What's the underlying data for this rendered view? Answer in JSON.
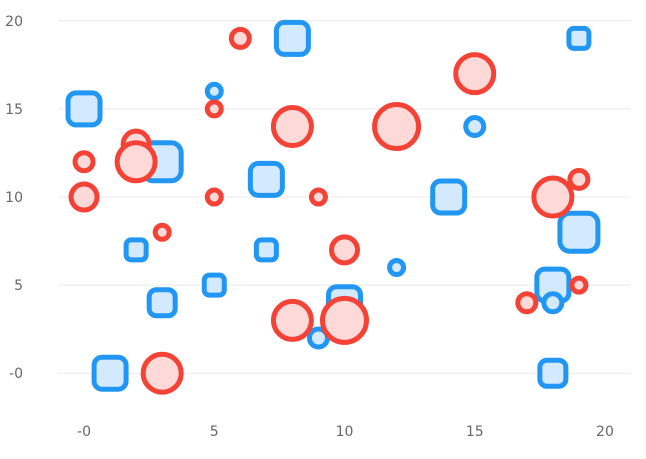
{
  "chart_data": {
    "type": "scatter",
    "title": "",
    "xlabel": "",
    "ylabel": "",
    "xlim": [
      -1,
      21
    ],
    "ylim": [
      -2.2,
      20.5
    ],
    "grid": {
      "horizontal": true,
      "vertical": false
    },
    "x_ticks": [
      {
        "value": 0,
        "label": "-0"
      },
      {
        "value": 5,
        "label": "5"
      },
      {
        "value": 10,
        "label": "10"
      },
      {
        "value": 15,
        "label": "15"
      },
      {
        "value": 20,
        "label": "20"
      }
    ],
    "y_ticks": [
      {
        "value": 0,
        "label": "-0"
      },
      {
        "value": 5,
        "label": "5"
      },
      {
        "value": 10,
        "label": "10"
      },
      {
        "value": 15,
        "label": "15"
      },
      {
        "value": 20,
        "label": "20"
      }
    ],
    "series": [
      {
        "name": "squares",
        "marker": "rounded-square",
        "stroke": "#2196f3",
        "fill": "#d3e9fd",
        "points": [
          {
            "x": 0,
            "y": 15,
            "size": 3
          },
          {
            "x": 1,
            "y": 0,
            "size": 3
          },
          {
            "x": 2,
            "y": 7,
            "size": 1
          },
          {
            "x": 3,
            "y": 12,
            "size": 4
          },
          {
            "x": 3,
            "y": 4,
            "size": 2
          },
          {
            "x": 5,
            "y": 5,
            "size": 1
          },
          {
            "x": 7,
            "y": 11,
            "size": 3
          },
          {
            "x": 7,
            "y": 7,
            "size": 1
          },
          {
            "x": 8,
            "y": 19,
            "size": 3
          },
          {
            "x": 10,
            "y": 4,
            "size": 3
          },
          {
            "x": 14,
            "y": 10,
            "size": 3
          },
          {
            "x": 18,
            "y": 5,
            "size": 3
          },
          {
            "x": 18,
            "y": 0,
            "size": 2
          },
          {
            "x": 19,
            "y": 8,
            "size": 4
          },
          {
            "x": 19,
            "y": 19,
            "size": 1
          }
        ]
      },
      {
        "name": "blue circles",
        "marker": "circle",
        "stroke": "#2196f3",
        "fill": "#d3e9fd",
        "points": [
          {
            "x": 5,
            "y": 16,
            "size": 1
          },
          {
            "x": 9,
            "y": 2,
            "size": 2
          },
          {
            "x": 12,
            "y": 6,
            "size": 1
          },
          {
            "x": 15,
            "y": 14,
            "size": 2
          },
          {
            "x": 18,
            "y": 4,
            "size": 2
          }
        ]
      },
      {
        "name": "red circles",
        "marker": "circle",
        "stroke": "#f44336",
        "fill": "#fdd9d7",
        "points": [
          {
            "x": 0,
            "y": 12,
            "size": 2
          },
          {
            "x": 0,
            "y": 10,
            "size": 3
          },
          {
            "x": 2,
            "y": 13,
            "size": 3
          },
          {
            "x": 2,
            "y": 12,
            "size": 4
          },
          {
            "x": 3,
            "y": 8,
            "size": 1
          },
          {
            "x": 3,
            "y": 0,
            "size": 4
          },
          {
            "x": 5,
            "y": 15,
            "size": 1
          },
          {
            "x": 5,
            "y": 10,
            "size": 1
          },
          {
            "x": 6,
            "y": 19,
            "size": 2
          },
          {
            "x": 8,
            "y": 14,
            "size": 4
          },
          {
            "x": 8,
            "y": 3,
            "size": 4
          },
          {
            "x": 9,
            "y": 10,
            "size": 1
          },
          {
            "x": 10,
            "y": 7,
            "size": 3
          },
          {
            "x": 10,
            "y": 3,
            "size": 5
          },
          {
            "x": 12,
            "y": 14,
            "size": 5
          },
          {
            "x": 15,
            "y": 17,
            "size": 4
          },
          {
            "x": 17,
            "y": 4,
            "size": 2
          },
          {
            "x": 18,
            "y": 10,
            "size": 4
          },
          {
            "x": 19,
            "y": 11,
            "size": 2
          },
          {
            "x": 19,
            "y": 5,
            "size": 1
          }
        ]
      }
    ]
  }
}
